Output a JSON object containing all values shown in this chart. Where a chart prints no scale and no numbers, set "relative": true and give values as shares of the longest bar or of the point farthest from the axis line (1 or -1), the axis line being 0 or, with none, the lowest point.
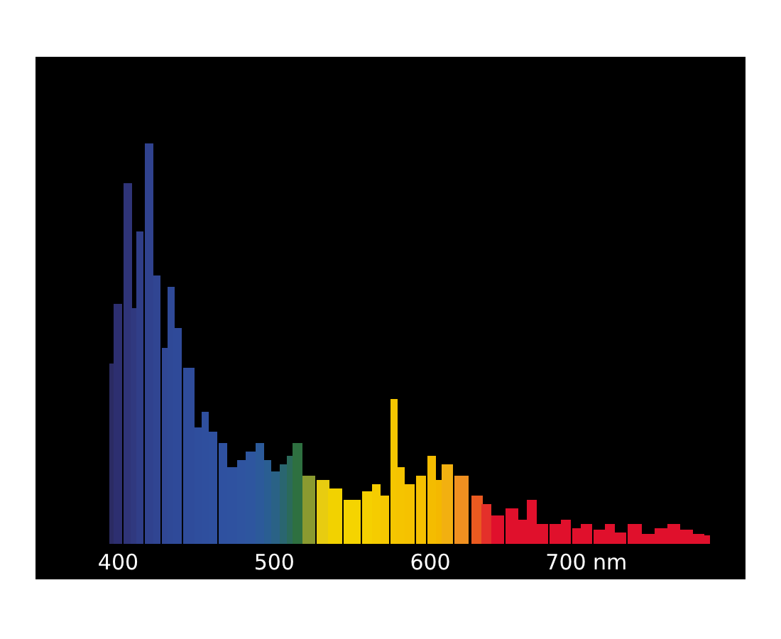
{
  "chart_data": {
    "type": "bar",
    "relative": true,
    "grid": false,
    "tick_labels": "x",
    "x": [
      396,
      400,
      406,
      410,
      414,
      420,
      425,
      430,
      434,
      438,
      445,
      452,
      456,
      461,
      467,
      473,
      479,
      485,
      491,
      496,
      501,
      506,
      510,
      515,
      522,
      531,
      539,
      550,
      560,
      565,
      571,
      577,
      581,
      587,
      594,
      601,
      606,
      611,
      620,
      630,
      636,
      643,
      652,
      659,
      665,
      672,
      680,
      687,
      694,
      700,
      708,
      715,
      722,
      731,
      740,
      748,
      756,
      764,
      772,
      777
    ],
    "values": [
      0.45,
      0.6,
      0.9,
      0.59,
      0.78,
      1,
      0.67,
      0.49,
      0.64,
      0.54,
      0.44,
      0.29,
      0.33,
      0.28,
      0.25,
      0.19,
      0.21,
      0.23,
      0.25,
      0.21,
      0.18,
      0.2,
      0.22,
      0.25,
      0.17,
      0.16,
      0.14,
      0.11,
      0.13,
      0.15,
      0.12,
      0.36,
      0.19,
      0.15,
      0.17,
      0.22,
      0.16,
      0.2,
      0.17,
      0.12,
      0.1,
      0.07,
      0.09,
      0.06,
      0.11,
      0.05,
      0.05,
      0.06,
      0.04,
      0.05,
      0.035,
      0.05,
      0.03,
      0.05,
      0.025,
      0.04,
      0.05,
      0.035,
      0.025,
      0.02
    ],
    "colors": [
      "#2b2b63",
      "#2d2f70",
      "#2f3478",
      "#30397f",
      "#303e88",
      "#30428e",
      "#304592",
      "#304795",
      "#2f4997",
      "#2f4a99",
      "#2f4c9b",
      "#2f4e9d",
      "#2f4f9e",
      "#2f509f",
      "#2f51a0",
      "#2f52a0",
      "#2f54a0",
      "#2e569f",
      "#2c5a9a",
      "#2a5e92",
      "#2a6286",
      "#2a6670",
      "#2b6a5a",
      "#2e7040",
      "#8a9a30",
      "#e8cc10",
      "#f2d200",
      "#f5d400",
      "#f5d000",
      "#f5cc00",
      "#f5c800",
      "#f5c600",
      "#f5c400",
      "#f5c200",
      "#f5c000",
      "#f4bc00",
      "#f4b800",
      "#f2b010",
      "#f09020",
      "#ea5a20",
      "#e4302a",
      "#e0102c",
      "#e0102c",
      "#e0102c",
      "#e0102c",
      "#e0102c",
      "#e0102c",
      "#e0102c",
      "#e0102c",
      "#e0102c",
      "#e0102c",
      "#e0102c",
      "#e0102c",
      "#e0102c",
      "#e0102c",
      "#e0102c",
      "#e0102c",
      "#e0102c",
      "#e0102c",
      "#e0102c"
    ],
    "xlim": [
      347,
      802
    ],
    "xticks": [
      400,
      500,
      600,
      {
        "value": 700,
        "label": "700 nm"
      }
    ]
  }
}
